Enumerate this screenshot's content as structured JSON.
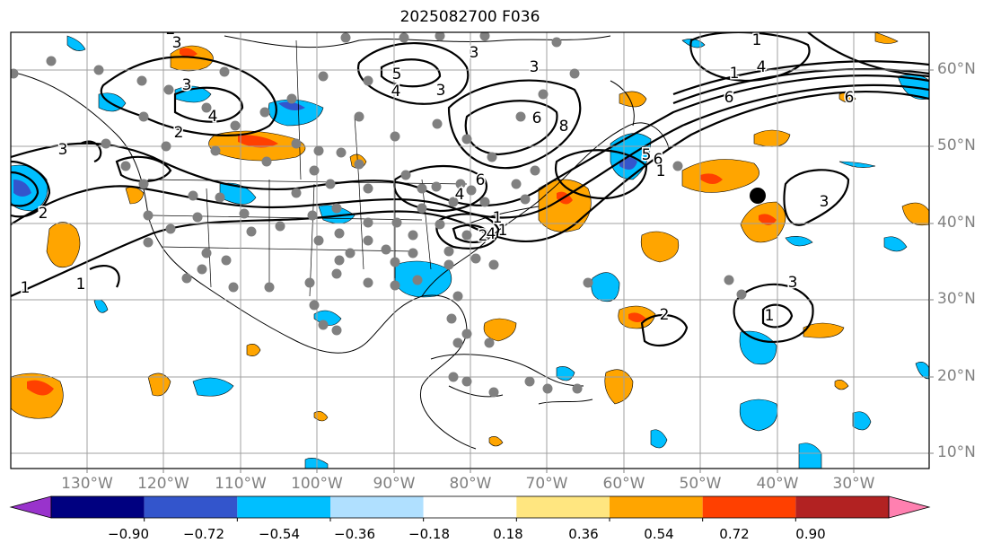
{
  "title": "2025082700 F036",
  "lon_labels": [
    "130°W",
    "120°W",
    "110°W",
    "100°W",
    "90°W",
    "80°W",
    "70°W",
    "60°W",
    "50°W",
    "40°W",
    "30°W"
  ],
  "lat_labels": [
    "60°N",
    "50°N",
    "40°N",
    "30°N",
    "20°N",
    "10°N"
  ],
  "colorbar": {
    "ticks": [
      "−0.90",
      "−0.72",
      "−0.54",
      "−0.36",
      "−0.18",
      "0.18",
      "0.36",
      "0.54",
      "0.72",
      "0.90"
    ],
    "colors": [
      "#9933cc",
      "#000080",
      "#3355cc",
      "#00bfff",
      "#b0e0ff",
      "#ffffff",
      "#ffe680",
      "#ffa500",
      "#ff4000",
      "#b22222",
      "#ff80b0"
    ]
  },
  "contour_labels": [
    "3",
    "2",
    "1",
    "1",
    "3",
    "4",
    "2",
    "3",
    "2",
    "5",
    "3",
    "3",
    "4",
    "3",
    "4",
    "6",
    "6",
    "1",
    "2",
    "1",
    "3",
    "3",
    "1",
    "8",
    "6",
    "4",
    "1",
    "6",
    "5",
    "6",
    "1",
    "1",
    "2",
    "4"
  ],
  "colors": {
    "warm_fill": "#ffa500",
    "warm_core": "#ff4000",
    "cool_fill": "#00bfff",
    "cool_core": "#3355cc",
    "station": "#808080",
    "grid": "#a0a0a0"
  }
}
